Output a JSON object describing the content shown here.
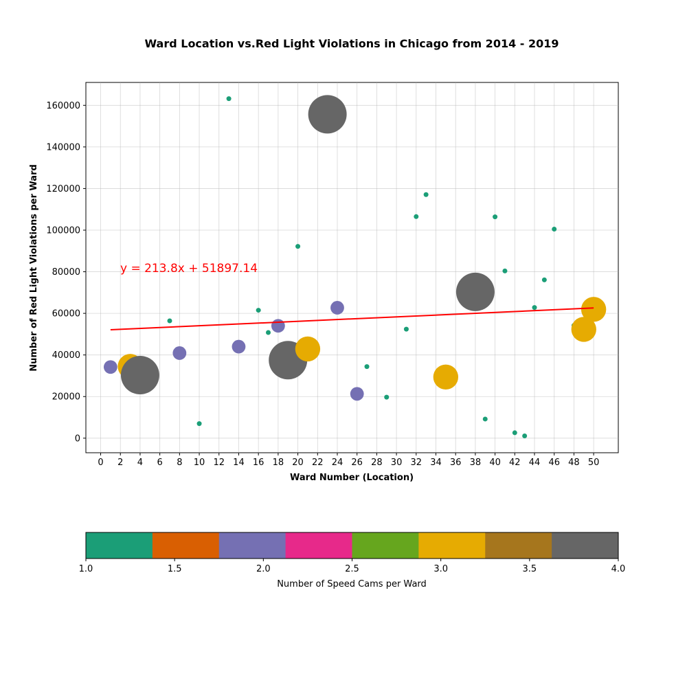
{
  "chart_data": {
    "type": "scatter",
    "title": "Ward Location vs.Red Light Violations in Chicago from 2014 - 2019",
    "xlabel": "Ward Number (Location)",
    "ylabel": "Number of Red Light Violations per Ward",
    "xlim": [
      -1.5,
      52.5
    ],
    "ylim": [
      -7000,
      171000
    ],
    "x_ticks": [
      0,
      2,
      4,
      6,
      8,
      10,
      12,
      14,
      16,
      18,
      20,
      22,
      24,
      26,
      28,
      30,
      32,
      34,
      36,
      38,
      40,
      42,
      44,
      46,
      48,
      50
    ],
    "y_ticks": [
      0,
      20000,
      40000,
      60000,
      80000,
      100000,
      120000,
      140000,
      160000
    ],
    "grid": true,
    "points": [
      {
        "x": 1,
        "y": 34200,
        "cams": 2
      },
      {
        "x": 3,
        "y": 34500,
        "cams": 3
      },
      {
        "x": 4,
        "y": 30300,
        "cams": 4
      },
      {
        "x": 7,
        "y": 56400,
        "cams": 1
      },
      {
        "x": 8,
        "y": 40900,
        "cams": 2
      },
      {
        "x": 10,
        "y": 7000,
        "cams": 1
      },
      {
        "x": 13,
        "y": 163200,
        "cams": 1
      },
      {
        "x": 14,
        "y": 44000,
        "cams": 2
      },
      {
        "x": 16,
        "y": 61500,
        "cams": 1
      },
      {
        "x": 17,
        "y": 50800,
        "cams": 1
      },
      {
        "x": 18,
        "y": 54000,
        "cams": 2
      },
      {
        "x": 19,
        "y": 37500,
        "cams": 4
      },
      {
        "x": 20,
        "y": 92200,
        "cams": 1
      },
      {
        "x": 21,
        "y": 42900,
        "cams": 3
      },
      {
        "x": 23,
        "y": 155700,
        "cams": 4
      },
      {
        "x": 24,
        "y": 62700,
        "cams": 2
      },
      {
        "x": 26,
        "y": 21300,
        "cams": 2
      },
      {
        "x": 27,
        "y": 34400,
        "cams": 1
      },
      {
        "x": 29,
        "y": 19700,
        "cams": 1
      },
      {
        "x": 31,
        "y": 52400,
        "cams": 1
      },
      {
        "x": 32,
        "y": 106500,
        "cams": 1
      },
      {
        "x": 33,
        "y": 117100,
        "cams": 1
      },
      {
        "x": 35,
        "y": 29400,
        "cams": 3
      },
      {
        "x": 38,
        "y": 70300,
        "cams": 4
      },
      {
        "x": 39,
        "y": 9200,
        "cams": 1
      },
      {
        "x": 40,
        "y": 106400,
        "cams": 1
      },
      {
        "x": 41,
        "y": 80400,
        "cams": 1
      },
      {
        "x": 42,
        "y": 2600,
        "cams": 1
      },
      {
        "x": 43,
        "y": 1100,
        "cams": 1
      },
      {
        "x": 44,
        "y": 62800,
        "cams": 1
      },
      {
        "x": 45,
        "y": 76100,
        "cams": 1
      },
      {
        "x": 46,
        "y": 100500,
        "cams": 1
      },
      {
        "x": 48,
        "y": 54200,
        "cams": 1
      },
      {
        "x": 49,
        "y": 52300,
        "cams": 3
      },
      {
        "x": 50,
        "y": 61900,
        "cams": 3
      }
    ],
    "regression": {
      "slope": 213.8,
      "intercept": 51897.14,
      "x_range": [
        1,
        50
      ],
      "equation_label": "y = 213.8x + 51897.14",
      "color": "#ff0000"
    },
    "colorbar": {
      "label": "Number of Speed Cams per Ward",
      "min": 1.0,
      "max": 4.0,
      "ticks": [
        "1.0",
        "1.5",
        "2.0",
        "2.5",
        "3.0",
        "3.5",
        "4.0"
      ],
      "colors": [
        "#1b9e77",
        "#d95f02",
        "#7570b3",
        "#e7298a",
        "#66a61e",
        "#e6ab02",
        "#a6761d",
        "#666666"
      ]
    }
  }
}
